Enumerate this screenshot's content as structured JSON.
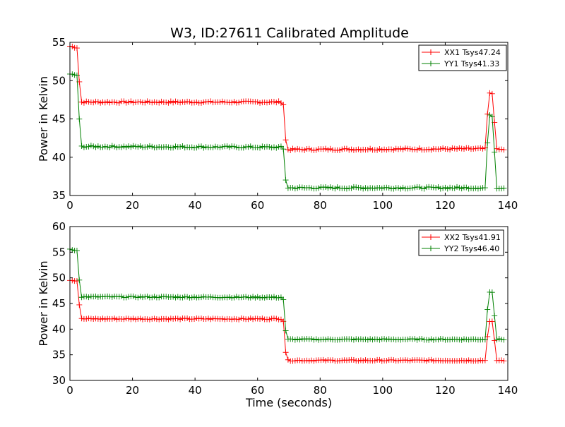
{
  "chart_data": {
    "title": "W3, ID:27611 Calibrated Amplitude",
    "colors": {
      "XX": "#ff0000",
      "YY": "#008000"
    },
    "panels": [
      {
        "type": "line",
        "ylabel": "Power in Kelvin",
        "xlabel": "",
        "xlim": [
          0,
          140
        ],
        "ylim": [
          35,
          55
        ],
        "xticks": [
          "0",
          "20",
          "40",
          "60",
          "80",
          "100",
          "120",
          "140"
        ],
        "yticks": [
          "35",
          "40",
          "45",
          "50",
          "55"
        ],
        "legend_position": "top-right",
        "series": [
          {
            "name": "XX1 Tsys47.24",
            "color_key": "XX",
            "segments": [
              [
                0,
                54.5
              ],
              [
                2.5,
                54.3
              ],
              [
                3.3,
                47.2
              ],
              [
                68.2,
                47.2
              ],
              [
                69.2,
                41.0
              ],
              [
                133,
                41.1
              ],
              [
                133.8,
                48.3
              ],
              [
                135.3,
                48.3
              ],
              [
                136.2,
                41.0
              ],
              [
                139,
                41.0
              ]
            ],
            "marker_step": 0.75
          },
          {
            "name": "YY1 Tsys41.33",
            "color_key": "YY",
            "segments": [
              [
                0,
                50.8
              ],
              [
                2.5,
                50.7
              ],
              [
                3.3,
                41.4
              ],
              [
                68.2,
                41.3
              ],
              [
                69.2,
                36.0
              ],
              [
                133,
                36.0
              ],
              [
                133.8,
                45.4
              ],
              [
                135.3,
                45.4
              ],
              [
                136.2,
                36.0
              ],
              [
                139,
                36.0
              ]
            ],
            "marker_step": 0.75
          }
        ]
      },
      {
        "type": "line",
        "ylabel": "Power in Kelvin",
        "xlabel": "Time (seconds)",
        "xlim": [
          0,
          140
        ],
        "ylim": [
          30,
          60
        ],
        "xticks": [
          "0",
          "20",
          "40",
          "60",
          "80",
          "100",
          "120",
          "140"
        ],
        "yticks": [
          "30",
          "35",
          "40",
          "45",
          "50",
          "55",
          "60"
        ],
        "legend_position": "top-right",
        "series": [
          {
            "name": "XX2 Tsys41.91",
            "color_key": "XX",
            "segments": [
              [
                0,
                49.6
              ],
              [
                2.5,
                49.4
              ],
              [
                3.3,
                42.0
              ],
              [
                68.2,
                42.0
              ],
              [
                69.2,
                33.9
              ],
              [
                133,
                33.9
              ],
              [
                133.8,
                41.5
              ],
              [
                135.3,
                41.4
              ],
              [
                136.2,
                33.9
              ],
              [
                139,
                33.9
              ]
            ],
            "marker_step": 0.75
          },
          {
            "name": "YY2 Tsys46.40",
            "color_key": "YY",
            "segments": [
              [
                0,
                55.5
              ],
              [
                2.5,
                55.3
              ],
              [
                3.3,
                46.3
              ],
              [
                68.2,
                46.2
              ],
              [
                69.2,
                38.0
              ],
              [
                133,
                38.0
              ],
              [
                133.8,
                47.3
              ],
              [
                135.3,
                47.3
              ],
              [
                136.2,
                38.0
              ],
              [
                139,
                38.0
              ]
            ],
            "marker_step": 0.75
          }
        ]
      }
    ]
  }
}
